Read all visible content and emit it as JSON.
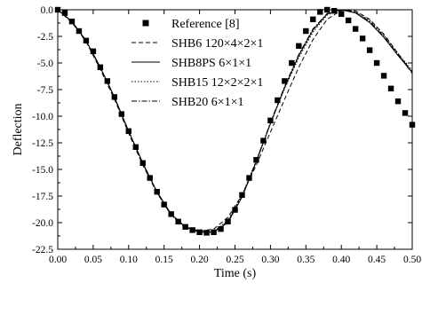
{
  "chart_data": {
    "type": "line",
    "title": "",
    "xlabel": "Time (s)",
    "ylabel": "Deflection",
    "xlim": [
      0,
      0.5
    ],
    "ylim": [
      -22.5,
      0
    ],
    "xticks": [
      "0.00",
      "0.05",
      "0.10",
      "0.15",
      "0.20",
      "0.25",
      "0.30",
      "0.35",
      "0.40",
      "0.45",
      "0.50"
    ],
    "yticks": [
      "0.0",
      "-2.5",
      "-5.0",
      "-7.5",
      "-10.0",
      "-12.5",
      "-15.0",
      "-17.5",
      "-20.0",
      "-22.5"
    ],
    "xtick_values": [
      0,
      0.05,
      0.1,
      0.15,
      0.2,
      0.25,
      0.3,
      0.35,
      0.4,
      0.45,
      0.5
    ],
    "ytick_values": [
      0,
      -2.5,
      -5,
      -7.5,
      -10,
      -12.5,
      -15,
      -17.5,
      -20,
      -22.5
    ],
    "grid": false,
    "legend_position": "top-right",
    "reference": {
      "name": "Reference [8]",
      "marker": "square",
      "x": [
        0.0,
        0.01,
        0.02,
        0.03,
        0.04,
        0.05,
        0.06,
        0.07,
        0.08,
        0.09,
        0.1,
        0.11,
        0.12,
        0.13,
        0.14,
        0.15,
        0.16,
        0.17,
        0.18,
        0.19,
        0.2,
        0.21,
        0.22,
        0.23,
        0.24,
        0.25,
        0.26,
        0.27,
        0.28,
        0.29,
        0.3,
        0.31,
        0.32,
        0.33,
        0.34,
        0.35,
        0.36,
        0.37,
        0.38,
        0.39,
        0.4,
        0.41,
        0.42,
        0.43,
        0.44,
        0.45,
        0.46,
        0.47,
        0.48,
        0.49,
        0.5
      ],
      "y": [
        0.0,
        -0.3,
        -1.1,
        -2.0,
        -2.9,
        -3.9,
        -5.4,
        -6.7,
        -8.2,
        -9.8,
        -11.4,
        -12.9,
        -14.4,
        -15.8,
        -17.1,
        -18.3,
        -19.2,
        -19.9,
        -20.4,
        -20.7,
        -20.9,
        -20.95,
        -20.9,
        -20.6,
        -19.9,
        -18.8,
        -17.4,
        -15.8,
        -14.1,
        -12.3,
        -10.4,
        -8.5,
        -6.7,
        -5.0,
        -3.4,
        -2.0,
        -0.9,
        -0.2,
        0.0,
        -0.1,
        -0.4,
        -1.0,
        -1.8,
        -2.7,
        -3.8,
        -5.0,
        -6.2,
        -7.4,
        -8.6,
        -9.7,
        -10.8
      ]
    },
    "series": [
      {
        "name": "SHB6 120×4×2×1",
        "style": "dashed",
        "x": [
          0.0,
          0.02,
          0.04,
          0.06,
          0.08,
          0.1,
          0.12,
          0.14,
          0.16,
          0.18,
          0.2,
          0.22,
          0.24,
          0.26,
          0.28,
          0.3,
          0.32,
          0.34,
          0.36,
          0.38,
          0.4,
          0.42,
          0.44,
          0.46,
          0.48,
          0.5
        ],
        "y": [
          0.0,
          -1.2,
          -3.0,
          -5.6,
          -8.4,
          -11.6,
          -14.6,
          -17.2,
          -19.3,
          -20.4,
          -20.8,
          -20.6,
          -19.5,
          -17.4,
          -14.6,
          -11.5,
          -8.4,
          -5.4,
          -2.8,
          -0.9,
          -0.05,
          -0.1,
          -0.9,
          -2.3,
          -4.1,
          -6.0
        ]
      },
      {
        "name": "SHB8PS 6×1×1",
        "style": "solid",
        "x": [
          0.0,
          0.02,
          0.04,
          0.06,
          0.08,
          0.1,
          0.12,
          0.14,
          0.16,
          0.18,
          0.2,
          0.22,
          0.24,
          0.26,
          0.28,
          0.3,
          0.32,
          0.34,
          0.36,
          0.38,
          0.4,
          0.42,
          0.44,
          0.46,
          0.48,
          0.5
        ],
        "y": [
          0.0,
          -1.1,
          -2.9,
          -5.4,
          -8.2,
          -11.4,
          -14.4,
          -17.1,
          -19.2,
          -20.4,
          -20.9,
          -20.9,
          -20.0,
          -17.6,
          -14.3,
          -10.7,
          -7.3,
          -4.3,
          -1.9,
          -0.4,
          0.0,
          -0.3,
          -1.2,
          -2.6,
          -4.3,
          -5.9
        ]
      },
      {
        "name": "SHB15 12×2×2×1",
        "style": "dotted",
        "x": [
          0.0,
          0.02,
          0.04,
          0.06,
          0.08,
          0.1,
          0.12,
          0.14,
          0.16,
          0.18,
          0.2,
          0.22,
          0.24,
          0.26,
          0.28,
          0.3,
          0.32,
          0.34,
          0.36,
          0.38,
          0.4,
          0.42,
          0.44,
          0.46,
          0.48,
          0.5
        ],
        "y": [
          0.0,
          -1.15,
          -2.95,
          -5.5,
          -8.3,
          -11.5,
          -14.5,
          -17.2,
          -19.3,
          -20.5,
          -20.9,
          -20.8,
          -19.8,
          -17.4,
          -14.2,
          -10.7,
          -7.4,
          -4.5,
          -2.1,
          -0.5,
          0.0,
          -0.2,
          -1.0,
          -2.4,
          -4.1,
          -5.7
        ]
      },
      {
        "name": "SHB20 6×1×1",
        "style": "dashdot",
        "x": [
          0.0,
          0.02,
          0.04,
          0.06,
          0.08,
          0.1,
          0.12,
          0.14,
          0.16,
          0.18,
          0.2,
          0.22,
          0.24,
          0.26,
          0.28,
          0.3,
          0.32,
          0.34,
          0.36,
          0.38,
          0.4,
          0.42,
          0.44,
          0.46,
          0.48,
          0.5
        ],
        "y": [
          0.0,
          -1.1,
          -2.9,
          -5.4,
          -8.2,
          -11.4,
          -14.4,
          -17.1,
          -19.2,
          -20.4,
          -20.9,
          -20.85,
          -19.9,
          -17.5,
          -14.2,
          -10.6,
          -7.2,
          -4.2,
          -1.8,
          -0.35,
          0.0,
          -0.25,
          -1.1,
          -2.5,
          -4.2,
          -5.8
        ]
      }
    ]
  }
}
